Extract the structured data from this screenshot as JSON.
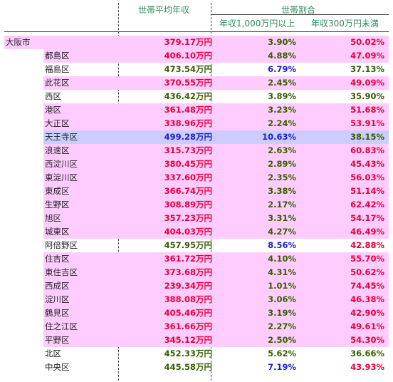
{
  "header": {
    "avg_income": "世帯平均年収",
    "household_ratio": "世帯割合",
    "over_10m": "年収1,000万円以上",
    "under_3m": "年収300万円未満"
  },
  "colors": {
    "pink": "#ffccff",
    "lavender": "#ccccff",
    "red": "#e8003a",
    "green": "#355e00",
    "blue": "#1a22c8"
  },
  "rows": [
    {
      "name": "大阪市",
      "income": "379.17万円",
      "high": "3.90%",
      "low": "50.02%",
      "bg": "pink",
      "indent": false,
      "ci": "red",
      "ch": "green",
      "cl": "red"
    },
    {
      "name": "都島区",
      "income": "406.10万円",
      "high": "4.88%",
      "low": "47.09%",
      "bg": "pink",
      "indent": true,
      "ci": "red",
      "ch": "green",
      "cl": "red"
    },
    {
      "name": "福島区",
      "income": "473.54万円",
      "high": "6.79%",
      "low": "37.13%",
      "bg": "none",
      "indent": true,
      "ci": "green",
      "ch": "blue",
      "cl": "green"
    },
    {
      "name": "此花区",
      "income": "370.55万円",
      "high": "2.45%",
      "low": "49.09%",
      "bg": "pink",
      "indent": true,
      "ci": "red",
      "ch": "green",
      "cl": "red"
    },
    {
      "name": "西区",
      "income": "436.42万円",
      "high": "3.89%",
      "low": "35.90%",
      "bg": "none",
      "indent": true,
      "ci": "green",
      "ch": "green",
      "cl": "green"
    },
    {
      "name": "港区",
      "income": "361.48万円",
      "high": "3.23%",
      "low": "51.68%",
      "bg": "pink",
      "indent": true,
      "ci": "red",
      "ch": "green",
      "cl": "red"
    },
    {
      "name": "大正区",
      "income": "338.96万円",
      "high": "2.24%",
      "low": "53.91%",
      "bg": "pink",
      "indent": true,
      "ci": "red",
      "ch": "green",
      "cl": "red"
    },
    {
      "name": "天王寺区",
      "income": "499.28万円",
      "high": "10.63%",
      "low": "38.15%",
      "bg": "lavender",
      "indent": true,
      "ci": "blue",
      "ch": "blue",
      "cl": "green"
    },
    {
      "name": "浪速区",
      "income": "315.73万円",
      "high": "2.63%",
      "low": "60.83%",
      "bg": "pink",
      "indent": true,
      "ci": "red",
      "ch": "green",
      "cl": "red"
    },
    {
      "name": "西淀川区",
      "income": "380.45万円",
      "high": "2.89%",
      "low": "45.43%",
      "bg": "pink",
      "indent": true,
      "ci": "red",
      "ch": "green",
      "cl": "red"
    },
    {
      "name": "東淀川区",
      "income": "337.60万円",
      "high": "2.35%",
      "low": "56.03%",
      "bg": "pink",
      "indent": true,
      "ci": "red",
      "ch": "green",
      "cl": "red"
    },
    {
      "name": "東成区",
      "income": "366.74万円",
      "high": "3.38%",
      "low": "51.14%",
      "bg": "pink",
      "indent": true,
      "ci": "red",
      "ch": "green",
      "cl": "red"
    },
    {
      "name": "生野区",
      "income": "308.89万円",
      "high": "2.17%",
      "low": "62.42%",
      "bg": "pink",
      "indent": true,
      "ci": "red",
      "ch": "green",
      "cl": "red"
    },
    {
      "name": "旭区",
      "income": "357.23万円",
      "high": "3.31%",
      "low": "54.17%",
      "bg": "pink",
      "indent": true,
      "ci": "red",
      "ch": "green",
      "cl": "red"
    },
    {
      "name": "城東区",
      "income": "404.03万円",
      "high": "4.27%",
      "low": "46.49%",
      "bg": "pink",
      "indent": true,
      "ci": "red",
      "ch": "green",
      "cl": "red"
    },
    {
      "name": "阿倍野区",
      "income": "457.95万円",
      "high": "8.56%",
      "low": "42.88%",
      "bg": "none",
      "indent": true,
      "ci": "green",
      "ch": "blue",
      "cl": "red"
    },
    {
      "name": "住吉区",
      "income": "361.72万円",
      "high": "4.10%",
      "low": "55.70%",
      "bg": "pink",
      "indent": true,
      "ci": "red",
      "ch": "green",
      "cl": "red"
    },
    {
      "name": "東住吉区",
      "income": "373.68万円",
      "high": "4.31%",
      "low": "50.62%",
      "bg": "pink",
      "indent": true,
      "ci": "red",
      "ch": "green",
      "cl": "red"
    },
    {
      "name": "西成区",
      "income": "239.34万円",
      "high": "1.01%",
      "low": "74.45%",
      "bg": "pink",
      "indent": true,
      "ci": "red",
      "ch": "green",
      "cl": "red"
    },
    {
      "name": "淀川区",
      "income": "388.08万円",
      "high": "3.06%",
      "low": "46.38%",
      "bg": "pink",
      "indent": true,
      "ci": "red",
      "ch": "green",
      "cl": "red"
    },
    {
      "name": "鶴見区",
      "income": "405.46万円",
      "high": "3.19%",
      "low": "42.90%",
      "bg": "pink",
      "indent": true,
      "ci": "red",
      "ch": "green",
      "cl": "red"
    },
    {
      "name": "住之江区",
      "income": "361.66万円",
      "high": "2.27%",
      "low": "49.61%",
      "bg": "pink",
      "indent": true,
      "ci": "red",
      "ch": "green",
      "cl": "red"
    },
    {
      "name": "平野区",
      "income": "345.12万円",
      "high": "2.50%",
      "low": "54.30%",
      "bg": "pink",
      "indent": true,
      "ci": "red",
      "ch": "green",
      "cl": "red"
    },
    {
      "name": "北区",
      "income": "452.33万円",
      "high": "5.62%",
      "low": "36.66%",
      "bg": "none",
      "indent": true,
      "ci": "green",
      "ch": "green",
      "cl": "green"
    },
    {
      "name": "中央区",
      "income": "445.58万円",
      "high": "7.19%",
      "low": "43.93%",
      "bg": "none",
      "indent": true,
      "ci": "green",
      "ch": "blue",
      "cl": "red"
    }
  ]
}
